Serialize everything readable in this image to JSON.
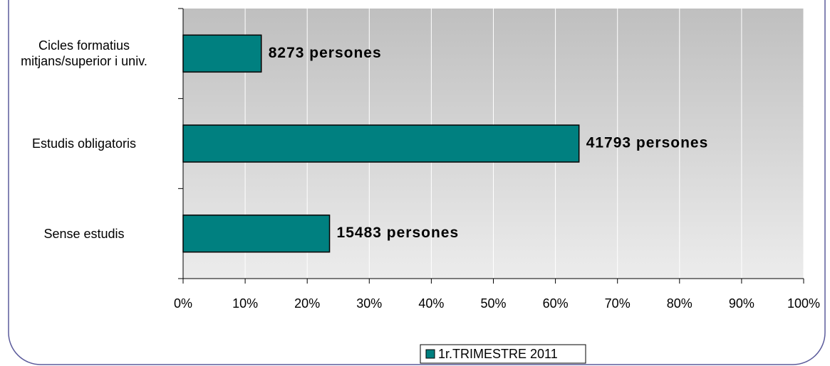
{
  "chart_data": {
    "type": "bar",
    "orientation": "horizontal",
    "categories": [
      "Cicles formatius\nmitjans/superior i univ.",
      "Estudis obligatoris",
      "Sense estudis"
    ],
    "series": [
      {
        "name": "1r.TRIMESTRE 2011",
        "color": "#008080",
        "values": [
          12.6,
          63.8,
          23.6
        ],
        "value_labels": [
          "8273 persones",
          "41793 persones",
          "15483 persones"
        ]
      }
    ],
    "xlim": [
      0,
      100
    ],
    "xticks": [
      {
        "value": 0,
        "label": "0%"
      },
      {
        "value": 10,
        "label": "10%"
      },
      {
        "value": 20,
        "label": "20%"
      },
      {
        "value": 30,
        "label": "30%"
      },
      {
        "value": 40,
        "label": "40%"
      },
      {
        "value": 50,
        "label": "50%"
      },
      {
        "value": 60,
        "label": "60%"
      },
      {
        "value": 70,
        "label": "70%"
      },
      {
        "value": 80,
        "label": "80%"
      },
      {
        "value": 90,
        "label": "90%"
      },
      {
        "value": 100,
        "label": "100%"
      }
    ],
    "grid": true,
    "legend": "bottom"
  }
}
